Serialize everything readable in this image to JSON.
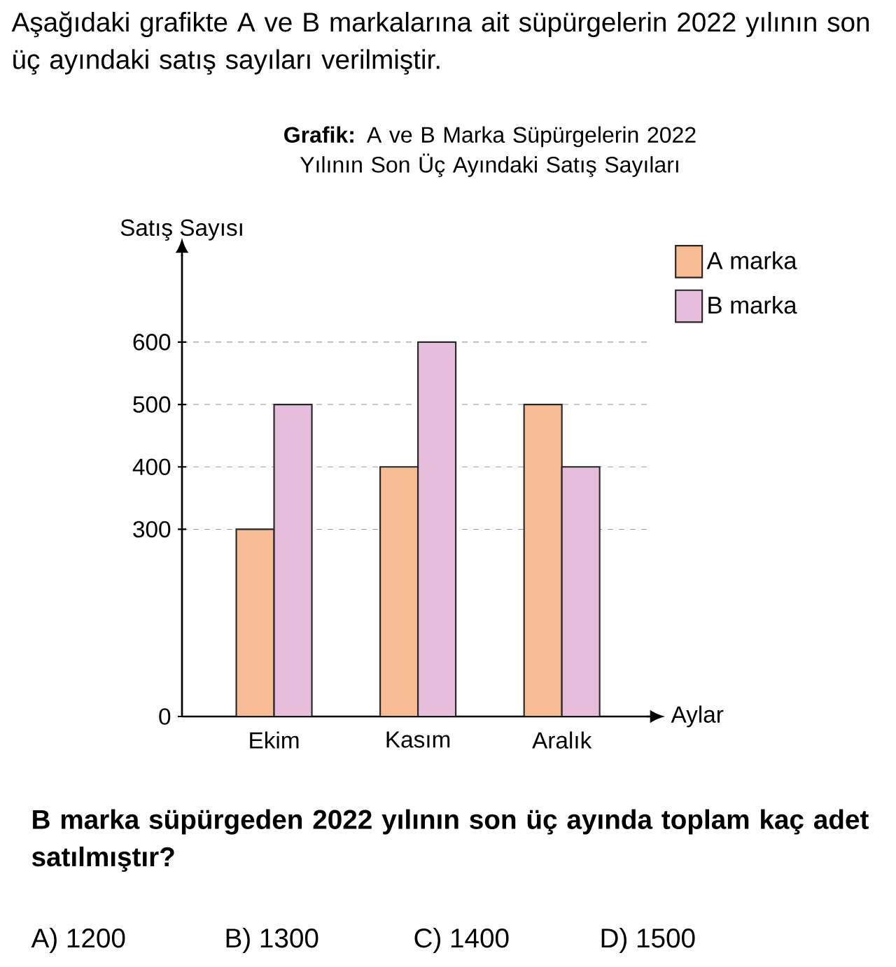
{
  "chart_data": {
    "type": "bar",
    "title": "**Grafik:** A ve B Marka Süpürgelerin 2022 Yılının Son Üç Ayındaki Satış Sayıları",
    "xlabel": "Aylar",
    "ylabel": "Satış Sayısı",
    "categories": [
      "Ekim",
      "Kasım",
      "Aralık"
    ],
    "series": [
      {
        "name": "A marka",
        "color": "#f7bc93",
        "values": [
          300,
          400,
          500
        ]
      },
      {
        "name": "B marka",
        "color": "#e6bedb",
        "values": [
          500,
          600,
          400
        ]
      }
    ],
    "ylim": [
      0,
      740
    ],
    "yticks": [
      0,
      300,
      400,
      500,
      600
    ],
    "grid": "y",
    "legend": "top right",
    "annotations": [
      "Aşağıdaki grafikte A ve B markalarına ait süpürgelerin 2022 yılının son üç ayındaki satış sayıları verilmiştir.",
      "B marka süpürgeden 2022 yılının son üç ayında toplam kaç adet satılmıştır?",
      "A) 1200",
      "B) 1300",
      "C) 1400",
      "D) 1500"
    ]
  }
}
